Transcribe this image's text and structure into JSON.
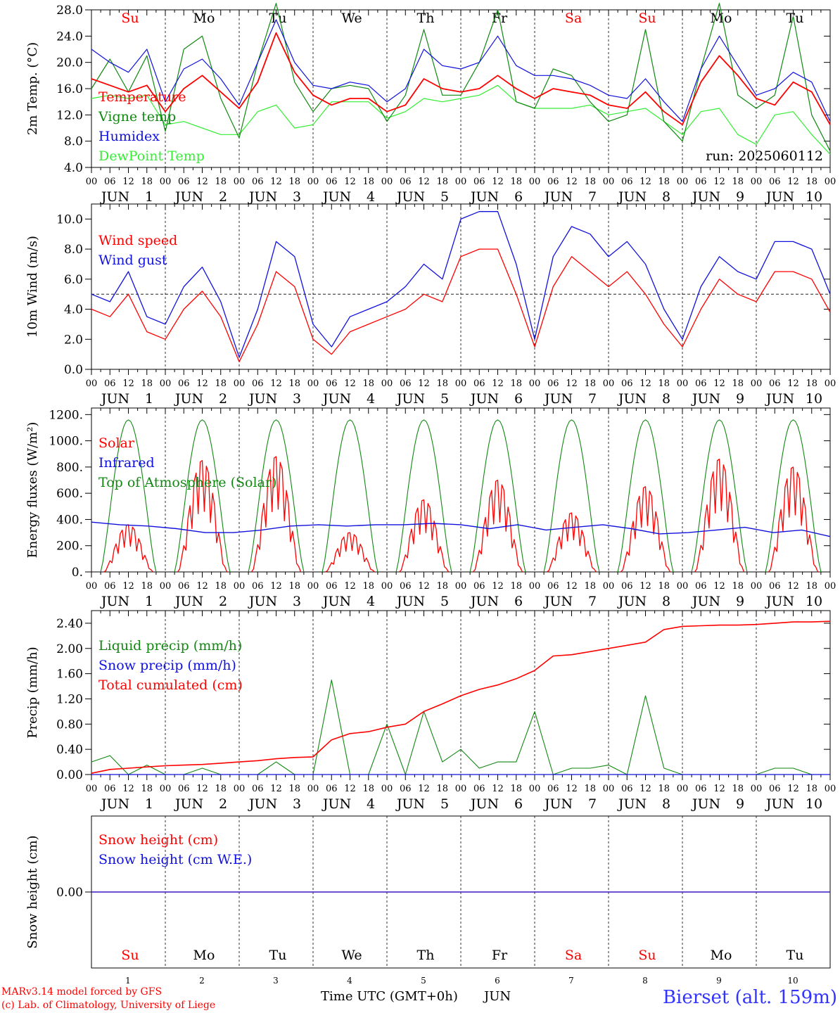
{
  "colors": {
    "red": "#ff0000",
    "darkgreen": "#118811",
    "blue": "#1111dd",
    "lightgreen": "#33ee33",
    "black": "#000000",
    "footer_blue": "#3333ff"
  },
  "days": [
    {
      "label": "Su",
      "num": "1",
      "weekend": true
    },
    {
      "label": "Mo",
      "num": "2",
      "weekend": false
    },
    {
      "label": "Tu",
      "num": "3",
      "weekend": false
    },
    {
      "label": "We",
      "num": "4",
      "weekend": false
    },
    {
      "label": "Th",
      "num": "5",
      "weekend": false
    },
    {
      "label": "Fr",
      "num": "6",
      "weekend": false
    },
    {
      "label": "Sa",
      "num": "7",
      "weekend": true
    },
    {
      "label": "Su",
      "num": "8",
      "weekend": true
    },
    {
      "label": "Mo",
      "num": "9",
      "weekend": false
    },
    {
      "label": "Tu",
      "num": "10",
      "weekend": false
    }
  ],
  "hour_ticks": [
    "00",
    "06",
    "12",
    "18"
  ],
  "month_label": "JUN",
  "footer": {
    "model": "MARv3.14 model forced by GFS",
    "copyright": "(c) Lab. of Climatology, University of Liege",
    "time_label": "Time UTC (GMT+0h)",
    "month": "JUN",
    "station": "Bierset (alt. 159m)"
  },
  "chart_data": [
    {
      "type": "line",
      "title": "",
      "ylabel": "2m Temp. (°C)",
      "ylim": [
        4.0,
        28.0
      ],
      "yticks": [
        "4.0",
        "8.0",
        "12.0",
        "16.0",
        "20.0",
        "24.0",
        "28.0"
      ],
      "run_label": "run: 2025060112",
      "x_hours": [
        0,
        6,
        12,
        18,
        24,
        30,
        36,
        42,
        48,
        54,
        60,
        66,
        72,
        78,
        84,
        90,
        96,
        102,
        108,
        114,
        120,
        126,
        132,
        138,
        144,
        150,
        156,
        162,
        168,
        174,
        180,
        186,
        192,
        198,
        204,
        210,
        216,
        222,
        228,
        234,
        240
      ],
      "series": [
        {
          "name": "Temperature",
          "color": "red",
          "values": [
            17.5,
            16.5,
            15.5,
            16.5,
            12.5,
            16.0,
            18.0,
            15.5,
            13.0,
            17.0,
            24.5,
            18.5,
            15.0,
            13.5,
            14.5,
            14.5,
            12.5,
            13.5,
            17.5,
            16.0,
            15.5,
            16.0,
            18.0,
            16.0,
            14.5,
            16.0,
            15.5,
            15.0,
            13.5,
            13.0,
            15.5,
            12.5,
            10.5,
            17.0,
            21.0,
            18.0,
            14.5,
            13.5,
            17.0,
            15.5,
            10.5
          ]
        },
        {
          "name": "Vigne temp",
          "color": "darkgreen",
          "values": [
            16.0,
            20.5,
            15.5,
            21.0,
            9.5,
            22.0,
            24.0,
            14.5,
            8.5,
            20.0,
            29.0,
            17.0,
            12.5,
            16.0,
            16.5,
            16.0,
            11.0,
            15.0,
            25.0,
            15.0,
            15.0,
            20.0,
            28.0,
            14.0,
            13.0,
            19.0,
            18.0,
            14.0,
            11.0,
            12.0,
            25.0,
            11.0,
            8.0,
            19.0,
            29.0,
            15.0,
            13.0,
            15.0,
            27.0,
            12.0,
            6.5
          ]
        },
        {
          "name": "Humidex",
          "color": "blue",
          "values": [
            22.0,
            20.0,
            18.5,
            22.0,
            14.0,
            19.0,
            20.5,
            17.5,
            13.5,
            20.0,
            26.5,
            20.0,
            16.5,
            16.0,
            17.0,
            16.5,
            14.0,
            16.0,
            22.0,
            19.5,
            19.0,
            20.0,
            24.0,
            19.5,
            18.0,
            18.0,
            17.5,
            16.5,
            15.0,
            14.5,
            17.5,
            14.0,
            11.0,
            19.0,
            24.0,
            19.5,
            15.0,
            16.0,
            18.5,
            17.0,
            11.0
          ]
        },
        {
          "name": "DewPoint Temp",
          "color": "lightgreen",
          "values": [
            14.5,
            15.0,
            14.5,
            15.0,
            10.5,
            11.0,
            10.0,
            9.0,
            9.0,
            12.5,
            13.5,
            10.0,
            10.5,
            14.0,
            14.0,
            14.0,
            11.5,
            12.5,
            14.5,
            14.0,
            14.5,
            15.0,
            16.5,
            14.0,
            13.0,
            13.0,
            13.0,
            13.5,
            12.0,
            12.5,
            13.0,
            11.0,
            9.0,
            12.5,
            13.0,
            9.0,
            7.5,
            12.0,
            12.5,
            9.0,
            6.0
          ]
        }
      ]
    },
    {
      "type": "line",
      "title": "",
      "ylabel": "10m Wind (m/s)",
      "ylim": [
        0.0,
        11.0
      ],
      "yticks": [
        "0.0",
        "2.0",
        "4.0",
        "6.0",
        "8.0",
        "10.0"
      ],
      "ref_line": 5.0,
      "x_hours": [
        0,
        6,
        12,
        18,
        24,
        30,
        36,
        42,
        48,
        54,
        60,
        66,
        72,
        78,
        84,
        90,
        96,
        102,
        108,
        114,
        120,
        126,
        132,
        138,
        144,
        150,
        156,
        162,
        168,
        174,
        180,
        186,
        192,
        198,
        204,
        210,
        216,
        222,
        228,
        234,
        240
      ],
      "series": [
        {
          "name": "Wind speed",
          "color": "red",
          "values": [
            4.0,
            3.5,
            5.0,
            2.5,
            2.0,
            4.0,
            5.2,
            3.5,
            0.5,
            3.0,
            6.5,
            5.5,
            2.0,
            1.0,
            2.5,
            3.0,
            3.5,
            4.0,
            5.0,
            4.5,
            7.5,
            8.0,
            8.0,
            5.0,
            1.5,
            5.5,
            7.5,
            6.5,
            5.5,
            6.5,
            5.0,
            3.0,
            1.5,
            4.0,
            6.0,
            5.0,
            4.5,
            6.5,
            6.5,
            6.0,
            3.8
          ]
        },
        {
          "name": "Wind gust",
          "color": "blue",
          "values": [
            5.0,
            4.5,
            6.5,
            3.5,
            3.0,
            5.5,
            6.8,
            4.5,
            0.8,
            4.0,
            8.5,
            7.5,
            3.0,
            1.5,
            3.5,
            4.0,
            4.5,
            5.5,
            7.0,
            6.0,
            10.0,
            10.5,
            10.5,
            7.0,
            2.0,
            7.5,
            9.5,
            9.0,
            7.5,
            8.5,
            7.0,
            4.0,
            2.0,
            5.5,
            7.5,
            6.5,
            6.0,
            8.5,
            8.5,
            8.0,
            5.0
          ]
        }
      ]
    },
    {
      "type": "line",
      "title": "",
      "ylabel": "Energy fluxes (W/m²)",
      "ylim": [
        0,
        1250
      ],
      "yticks": [
        "0.",
        "200.",
        "400.",
        "600.",
        "800.",
        "1000.",
        "1200."
      ],
      "series": [
        {
          "name": "Solar",
          "color": "red",
          "day_peaks": [
            360,
            850,
            880,
            300,
            550,
            700,
            450,
            650,
            860,
            800
          ]
        },
        {
          "name": "Infrared",
          "color": "blue",
          "values": [
            380,
            360,
            350,
            330,
            300,
            300,
            320,
            350,
            360,
            350,
            360,
            360,
            370,
            360,
            330,
            360,
            320,
            340,
            360,
            330,
            290,
            300,
            320,
            340,
            300,
            320,
            270
          ]
        },
        {
          "name": "Top of Atmosphere (Solar)",
          "color": "darkgreen",
          "day_peaks": [
            1160,
            1160,
            1160,
            1160,
            1160,
            1160,
            1160,
            1160,
            1160,
            1160
          ]
        }
      ]
    },
    {
      "type": "line",
      "title": "",
      "ylabel": "Precip (mm/h)",
      "ylim": [
        0.0,
        2.6
      ],
      "yticks": [
        "0.00",
        "0.40",
        "0.80",
        "1.20",
        "1.60",
        "2.00",
        "2.40"
      ],
      "x_hours": [
        0,
        6,
        12,
        18,
        24,
        30,
        36,
        42,
        48,
        54,
        60,
        66,
        72,
        78,
        84,
        90,
        96,
        102,
        108,
        114,
        120,
        126,
        132,
        138,
        144,
        150,
        156,
        162,
        168,
        174,
        180,
        186,
        192,
        198,
        204,
        210,
        216,
        222,
        228,
        234,
        240
      ],
      "series": [
        {
          "name": "Liquid precip (mm/h)",
          "color": "darkgreen",
          "values": [
            0.2,
            0.3,
            0.0,
            0.15,
            0.0,
            0.0,
            0.1,
            0.0,
            0.0,
            0.0,
            0.2,
            0.0,
            0.0,
            1.5,
            0.0,
            0.0,
            0.8,
            0.0,
            1.0,
            0.2,
            0.4,
            0.1,
            0.2,
            0.2,
            1.0,
            0.0,
            0.1,
            0.1,
            0.15,
            0.0,
            1.25,
            0.1,
            0.0,
            0.0,
            0.0,
            0.0,
            0.0,
            0.1,
            0.1,
            0.0,
            0.0
          ]
        },
        {
          "name": "Snow precip (mm/h)",
          "color": "blue",
          "values": [
            0,
            0,
            0,
            0,
            0,
            0,
            0,
            0,
            0,
            0,
            0,
            0,
            0,
            0,
            0,
            0,
            0,
            0,
            0,
            0,
            0,
            0,
            0,
            0,
            0,
            0,
            0,
            0,
            0,
            0,
            0,
            0,
            0,
            0,
            0,
            0,
            0,
            0,
            0,
            0,
            0
          ]
        },
        {
          "name": "Total cumulated (cm)",
          "color": "red",
          "values": [
            0.02,
            0.08,
            0.1,
            0.12,
            0.14,
            0.15,
            0.16,
            0.18,
            0.2,
            0.22,
            0.25,
            0.27,
            0.28,
            0.55,
            0.65,
            0.68,
            0.75,
            0.8,
            1.0,
            1.12,
            1.25,
            1.35,
            1.42,
            1.52,
            1.65,
            1.88,
            1.9,
            1.95,
            2.0,
            2.05,
            2.1,
            2.3,
            2.35,
            2.36,
            2.37,
            2.37,
            2.38,
            2.4,
            2.42,
            2.42,
            2.43
          ]
        }
      ]
    },
    {
      "type": "line",
      "title": "",
      "ylabel": "Snow height (cm)",
      "ylim": [
        -1.0,
        1.0
      ],
      "yticks": [
        "0.00"
      ],
      "series": [
        {
          "name": "Snow height (cm)",
          "color": "red",
          "values": [
            0,
            0
          ]
        },
        {
          "name": "Snow height (cm W.E.)",
          "color": "blue",
          "values": [
            0,
            0
          ]
        }
      ]
    }
  ]
}
